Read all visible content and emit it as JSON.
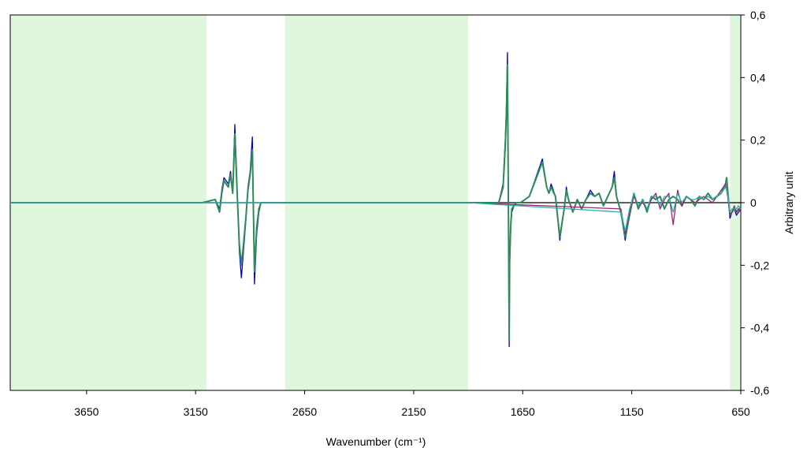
{
  "chart_data": {
    "type": "line",
    "title": "",
    "xlabel": "Wavenumber (cm⁻¹)",
    "ylabel": "Arbitrary unit",
    "x_reversed": true,
    "xlim": [
      4000,
      650
    ],
    "ylim": [
      -0.6,
      0.6
    ],
    "y_axis_side": "right",
    "grid": false,
    "x_ticks": [
      3650,
      3150,
      2650,
      2150,
      1650,
      1150,
      650
    ],
    "x_tick_labels": [
      "3650",
      "3150",
      "2650",
      "2150",
      "1650",
      "1150",
      "650"
    ],
    "y_ticks": [
      0.6,
      0.4,
      0.2,
      0,
      -0.2,
      -0.4,
      -0.6
    ],
    "y_tick_labels": [
      "0,6",
      "0,4",
      "0,2",
      "0",
      "-0,2",
      "-0,4",
      "-0,6"
    ],
    "shaded_regions": [
      {
        "from": 4000,
        "to": 3100,
        "color": "#dff7dc"
      },
      {
        "from": 2740,
        "to": 1900,
        "color": "#dff7dc"
      },
      {
        "from": 700,
        "to": 650,
        "color": "#dff7dc"
      }
    ],
    "series": [
      {
        "color": "#0000cc",
        "x": [
          4000,
          3120,
          3060,
          3040,
          3030,
          3020,
          3000,
          2990,
          2980,
          2970,
          2960,
          2950,
          2940,
          2930,
          2920,
          2910,
          2900,
          2890,
          2880,
          2870,
          2860,
          2850,
          2830,
          2800,
          2740,
          1900,
          1760,
          1740,
          1730,
          1725,
          1720,
          1715,
          1712,
          1710,
          1705,
          1700,
          1690,
          1680,
          1660,
          1620,
          1560,
          1540,
          1530,
          1520,
          1500,
          1480,
          1460,
          1450,
          1440,
          1420,
          1400,
          1380,
          1360,
          1340,
          1320,
          1300,
          1280,
          1260,
          1240,
          1230,
          1220,
          1200,
          1180,
          1160,
          1140,
          1120,
          1100,
          1080,
          1060,
          1040,
          1020,
          1000,
          980,
          960,
          940,
          920,
          900,
          880,
          860,
          840,
          820,
          800,
          780,
          760,
          740,
          720,
          715,
          710,
          700,
          690,
          680,
          670,
          660,
          650
        ],
        "y": [
          0,
          0,
          0.01,
          -0.02,
          0.04,
          0.08,
          0.06,
          0.1,
          0.04,
          0.25,
          0.05,
          -0.15,
          -0.24,
          -0.15,
          -0.06,
          0.05,
          0.1,
          0.21,
          -0.26,
          -0.1,
          -0.03,
          0,
          0,
          0,
          0,
          0,
          0,
          0.06,
          0.2,
          0.3,
          0.48,
          -0.1,
          -0.46,
          -0.2,
          -0.08,
          -0.03,
          -0.01,
          0,
          0,
          0.02,
          0.14,
          0.05,
          0.03,
          0.06,
          0.02,
          -0.12,
          -0.02,
          0.05,
          0.01,
          -0.03,
          0.01,
          -0.02,
          0.01,
          0.04,
          0.02,
          0.03,
          -0.01,
          0.02,
          0.05,
          0.1,
          0.02,
          -0.03,
          -0.12,
          -0.04,
          0.03,
          -0.02,
          0.01,
          -0.03,
          0.02,
          0.01,
          0.02,
          -0.02,
          0.01,
          0.02,
          0.01,
          -0.01,
          0.02,
          0.01,
          -0.01,
          0.02,
          0.01,
          0.03,
          0.01,
          0.02,
          0.03,
          0.06,
          0.08,
          0.04,
          -0.05,
          -0.03,
          -0.02,
          -0.04,
          -0.03,
          -0.02
        ]
      },
      {
        "color": "#2e8b57",
        "x": [
          4000,
          3120,
          3060,
          3040,
          3030,
          3020,
          3000,
          2990,
          2980,
          2970,
          2960,
          2950,
          2940,
          2930,
          2920,
          2910,
          2900,
          2890,
          2880,
          2870,
          2860,
          2850,
          2830,
          2800,
          2740,
          1900,
          1760,
          1740,
          1730,
          1725,
          1720,
          1715,
          1712,
          1710,
          1705,
          1700,
          1690,
          1680,
          1660,
          1620,
          1560,
          1540,
          1530,
          1520,
          1500,
          1480,
          1460,
          1450,
          1440,
          1420,
          1400,
          1380,
          1360,
          1340,
          1320,
          1300,
          1280,
          1260,
          1240,
          1230,
          1220,
          1200,
          1180,
          1160,
          1140,
          1120,
          1100,
          1080,
          1060,
          1040,
          1020,
          1000,
          980,
          960,
          940,
          920,
          900,
          880,
          860,
          840,
          820,
          800,
          780,
          760,
          740,
          720,
          715,
          710,
          700,
          690,
          680,
          670,
          660,
          650
        ],
        "y": [
          0,
          0,
          0.01,
          -0.03,
          0.03,
          0.07,
          0.05,
          0.09,
          0.03,
          0.22,
          0.04,
          -0.13,
          -0.2,
          -0.13,
          -0.05,
          0.04,
          0.09,
          0.17,
          -0.22,
          -0.08,
          -0.02,
          0,
          0,
          0,
          0,
          0,
          0,
          0.05,
          0.18,
          0.28,
          0.44,
          -0.08,
          -0.44,
          -0.18,
          -0.07,
          -0.02,
          -0.01,
          0,
          0,
          0.02,
          0.13,
          0.05,
          0.03,
          0.05,
          0.02,
          -0.11,
          -0.02,
          0.04,
          0.01,
          -0.03,
          0.01,
          -0.02,
          0.01,
          0.03,
          0.02,
          0.03,
          -0.01,
          0.02,
          0.05,
          0.08,
          0.02,
          -0.03,
          -0.11,
          -0.04,
          0.03,
          -0.02,
          0.01,
          -0.03,
          0.02,
          0.01,
          0.02,
          -0.02,
          0.01,
          0.02,
          0.01,
          -0.01,
          0.02,
          0.01,
          -0.01,
          0.02,
          0.01,
          0.03,
          0.01,
          0.02,
          0.03,
          0.06,
          0.08,
          0.04,
          -0.04,
          -0.03,
          -0.02,
          -0.03,
          -0.02,
          -0.02
        ]
      },
      {
        "color": "#a0206e",
        "x": [
          4000,
          1900,
          1200,
          1180,
          1160,
          1140,
          1120,
          1100,
          1080,
          1060,
          1040,
          1020,
          1000,
          980,
          960,
          940,
          920,
          900,
          880,
          860,
          840,
          820,
          800,
          780,
          760,
          740,
          720,
          710,
          700,
          690,
          680,
          670,
          660,
          650
        ],
        "y": [
          0,
          0,
          -0.02,
          -0.1,
          -0.03,
          0.02,
          -0.01,
          0,
          -0.02,
          0.01,
          0.03,
          -0.02,
          0.01,
          0.03,
          -0.07,
          0.04,
          -0.01,
          0.02,
          0.01,
          0,
          0.01,
          0.02,
          0.01,
          0,
          0.02,
          0.04,
          0.06,
          0.02,
          -0.04,
          -0.03,
          -0.01,
          -0.03,
          -0.02,
          -0.03
        ]
      },
      {
        "color": "#20b2aa",
        "x": [
          4000,
          1900,
          1200,
          1180,
          1160,
          1140,
          1120,
          1100,
          1080,
          1060,
          1040,
          1020,
          1000,
          980,
          960,
          940,
          920,
          900,
          880,
          860,
          840,
          820,
          800,
          780,
          760,
          740,
          720,
          710,
          700,
          690,
          680,
          670,
          660,
          650
        ],
        "y": [
          0,
          0,
          -0.03,
          -0.09,
          -0.02,
          0.03,
          -0.01,
          0.01,
          -0.02,
          0.02,
          0.02,
          -0.01,
          0.02,
          0.02,
          -0.03,
          0.03,
          0,
          0.02,
          0.01,
          0.01,
          0.02,
          0.01,
          0.02,
          0.01,
          0.02,
          0.03,
          0.05,
          0.03,
          -0.03,
          -0.02,
          -0.02,
          -0.02,
          -0.01,
          -0.02
        ]
      }
    ]
  }
}
